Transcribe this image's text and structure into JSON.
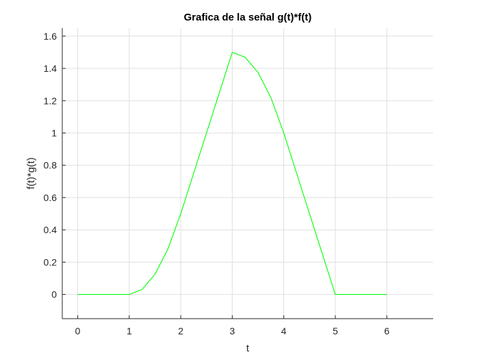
{
  "chart_data": {
    "type": "line",
    "title": "Grafica de la señal g(t)*f(t)",
    "xlabel": "t",
    "ylabel": "f(t)*g(t)",
    "xlim": [
      -0.3,
      6.9
    ],
    "ylim": [
      -0.15,
      1.65
    ],
    "xticks": [
      0,
      1,
      2,
      3,
      4,
      5,
      6
    ],
    "xtick_labels": [
      "0",
      "1",
      "2",
      "3",
      "4",
      "5",
      "6"
    ],
    "yticks": [
      0,
      0.2,
      0.4,
      0.6,
      0.8,
      1,
      1.2,
      1.4,
      1.6
    ],
    "ytick_labels": [
      "0",
      "0.2",
      "0.4",
      "0.6",
      "0.8",
      "1",
      "1.2",
      "1.4",
      "1.6"
    ],
    "grid": true,
    "series": [
      {
        "color": "#00ff00",
        "x": [
          0,
          0.5,
          1,
          1.25,
          1.5,
          1.75,
          2,
          2.25,
          2.5,
          2.75,
          3,
          3.25,
          3.5,
          3.75,
          4,
          4.25,
          4.5,
          4.75,
          5,
          5.5,
          6
        ],
        "y": [
          0,
          0,
          0,
          0.031,
          0.125,
          0.281,
          0.5,
          0.75,
          1.0,
          1.25,
          1.5,
          1.469,
          1.375,
          1.219,
          1.0,
          0.75,
          0.5,
          0.25,
          0,
          0,
          0
        ]
      }
    ]
  }
}
